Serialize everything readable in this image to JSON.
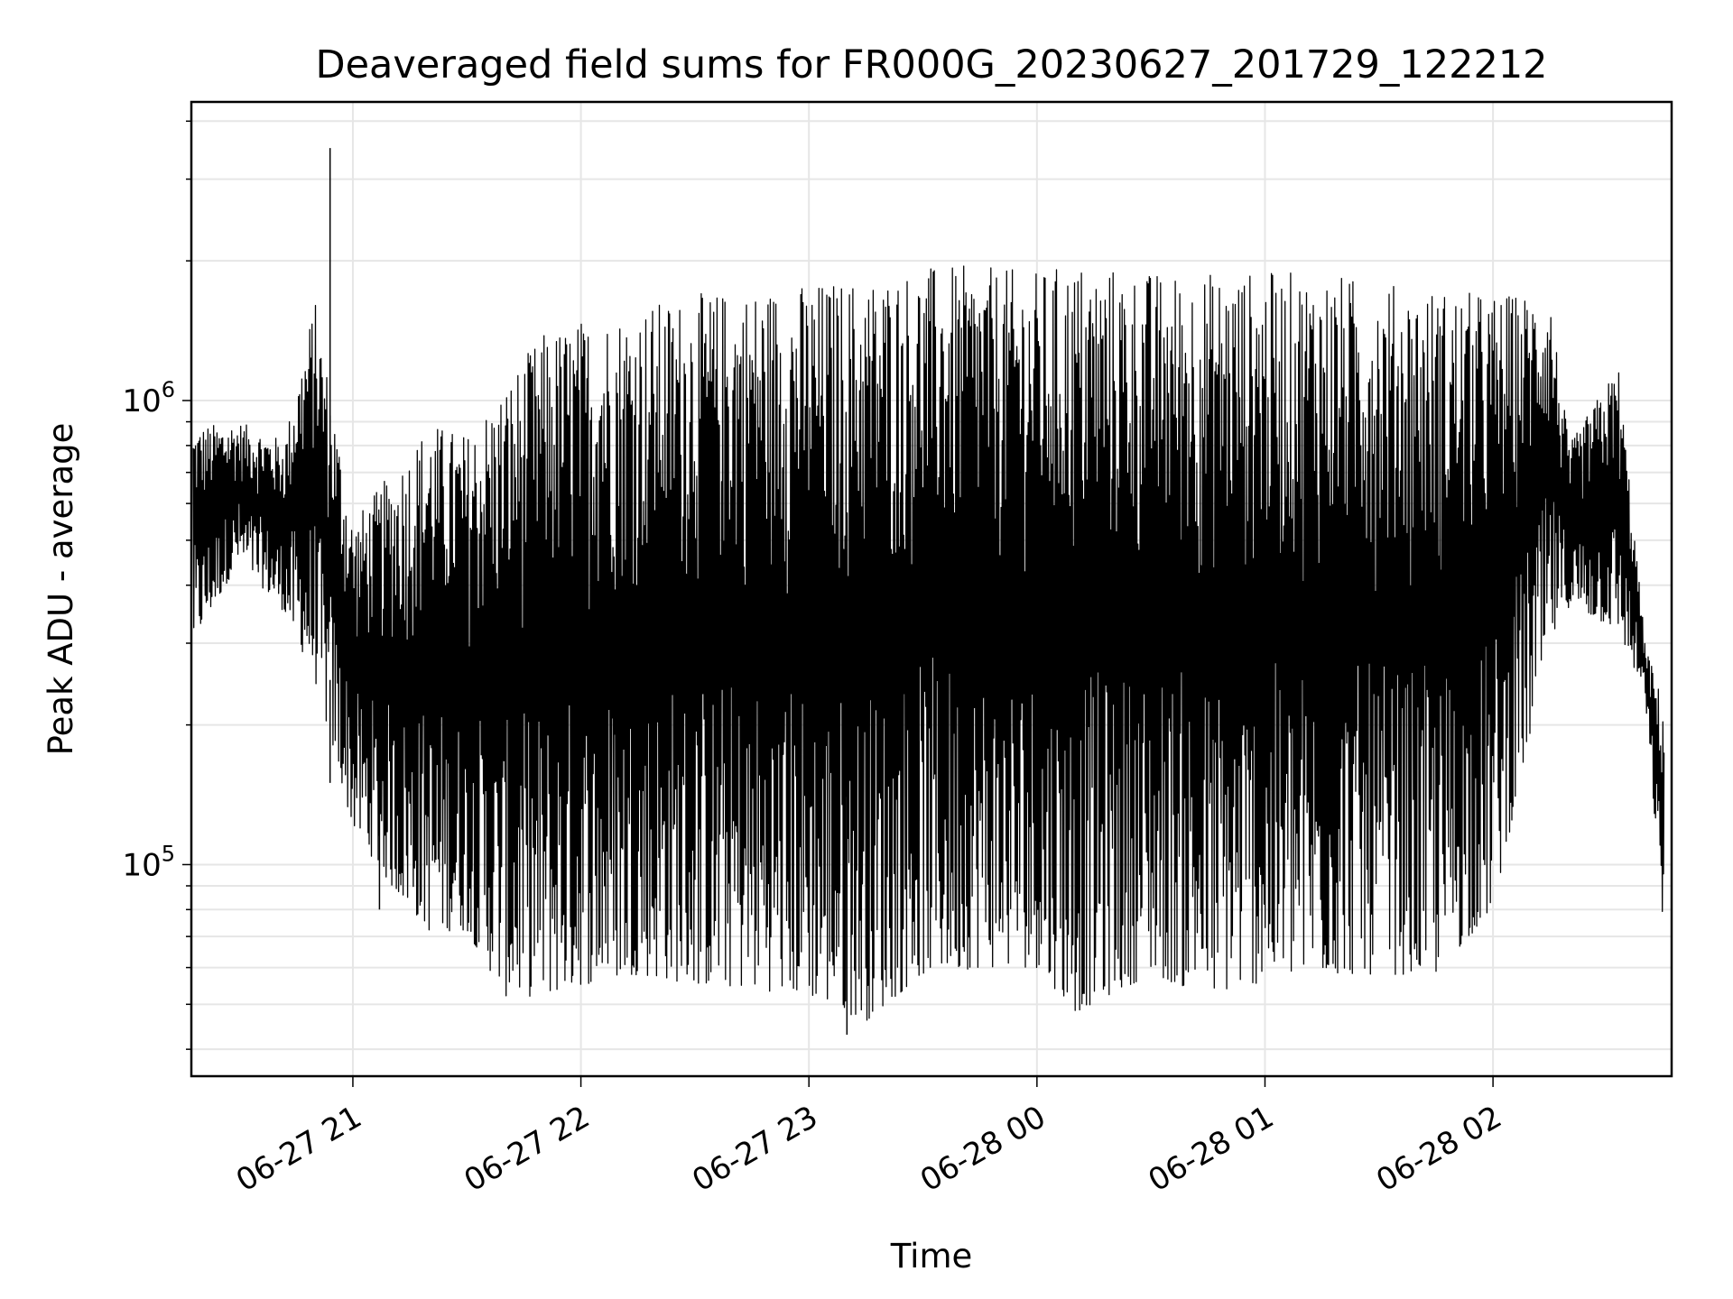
{
  "chart_data": {
    "type": "line",
    "title": "Deaveraged field sums for FR000G_20230627_201729_122212",
    "xlabel": "Time",
    "ylabel": "Peak ADU - average",
    "y_scale": "log",
    "xlim": [
      "2023-06-27 20:17:30",
      "2023-06-28 02:47:00"
    ],
    "ylim": [
      35000,
      4400000
    ],
    "grid": true,
    "legend": "none",
    "line_color": "#000000",
    "x_ticks": [
      {
        "value": "2023-06-27 21:00",
        "label": "06-27 21"
      },
      {
        "value": "2023-06-27 22:00",
        "label": "06-27 22"
      },
      {
        "value": "2023-06-27 23:00",
        "label": "06-27 23"
      },
      {
        "value": "2023-06-28 00:00",
        "label": "06-28 00"
      },
      {
        "value": "2023-06-28 01:00",
        "label": "06-28 01"
      },
      {
        "value": "2023-06-28 02:00",
        "label": "06-28 02"
      }
    ],
    "y_ticks": [
      {
        "value": 100000,
        "base": "10",
        "exponent": "5"
      },
      {
        "value": 1000000,
        "base": "10",
        "exponent": "6"
      }
    ],
    "series": [
      {
        "envelope": [
          {
            "t": "2023-06-27 20:18",
            "low": 300000,
            "high": 880000
          },
          {
            "t": "2023-06-27 20:30",
            "low": 450000,
            "high": 900000
          },
          {
            "t": "2023-06-27 20:42",
            "low": 350000,
            "high": 820000
          },
          {
            "t": "2023-06-27 20:50",
            "low": 250000,
            "high": 1650000
          },
          {
            "t": "2023-06-27 21:00",
            "low": 120000,
            "high": 550000
          },
          {
            "t": "2023-06-27 21:10",
            "low": 90000,
            "high": 700000
          },
          {
            "t": "2023-06-27 21:20",
            "low": 72000,
            "high": 900000
          },
          {
            "t": "2023-06-27 21:30",
            "low": 72000,
            "high": 850000
          },
          {
            "t": "2023-06-27 21:40",
            "low": 52000,
            "high": 1100000
          },
          {
            "t": "2023-06-27 21:50",
            "low": 52000,
            "high": 1400000
          },
          {
            "t": "2023-06-27 22:00",
            "low": 55000,
            "high": 1500000
          },
          {
            "t": "2023-06-27 22:15",
            "low": 58000,
            "high": 1600000
          },
          {
            "t": "2023-06-27 22:30",
            "low": 55000,
            "high": 1700000
          },
          {
            "t": "2023-06-27 22:45",
            "low": 54000,
            "high": 1750000
          },
          {
            "t": "2023-06-27 23:00",
            "low": 52000,
            "high": 1800000
          },
          {
            "t": "2023-06-27 23:15",
            "low": 46000,
            "high": 1850000
          },
          {
            "t": "2023-06-27 23:30",
            "low": 58000,
            "high": 1950000
          },
          {
            "t": "2023-06-27 23:45",
            "low": 60000,
            "high": 1950000
          },
          {
            "t": "2023-06-28 00:00",
            "low": 60000,
            "high": 1900000
          },
          {
            "t": "2023-06-28 00:10",
            "low": 48000,
            "high": 2000000
          },
          {
            "t": "2023-06-28 00:30",
            "low": 58000,
            "high": 1900000
          },
          {
            "t": "2023-06-28 00:45",
            "low": 52000,
            "high": 1900000
          },
          {
            "t": "2023-06-28 01:00",
            "low": 56000,
            "high": 1900000
          },
          {
            "t": "2023-06-28 01:15",
            "low": 58000,
            "high": 1900000
          },
          {
            "t": "2023-06-28 01:30",
            "low": 58000,
            "high": 1800000
          },
          {
            "t": "2023-06-28 01:45",
            "low": 58000,
            "high": 1750000
          },
          {
            "t": "2023-06-28 02:00",
            "low": 80000,
            "high": 1700000
          },
          {
            "t": "2023-06-28 02:15",
            "low": 300000,
            "high": 1700000
          },
          {
            "t": "2023-06-28 02:20",
            "low": 360000,
            "high": 800000
          },
          {
            "t": "2023-06-28 02:33",
            "low": 320000,
            "high": 1200000
          },
          {
            "t": "2023-06-28 02:40",
            "low": 230000,
            "high": 300000
          },
          {
            "t": "2023-06-28 02:45",
            "low": 70000,
            "high": 220000
          }
        ],
        "spikes": [
          {
            "t": "2023-06-27 20:54",
            "value": 3500000
          },
          {
            "t": "2023-06-27 20:54",
            "value": 150000
          },
          {
            "t": "2023-06-27 21:07",
            "value": 80000
          },
          {
            "t": "2023-06-27 21:47",
            "value": 1150000
          },
          {
            "t": "2023-06-27 23:10",
            "value": 43000
          }
        ]
      }
    ]
  }
}
